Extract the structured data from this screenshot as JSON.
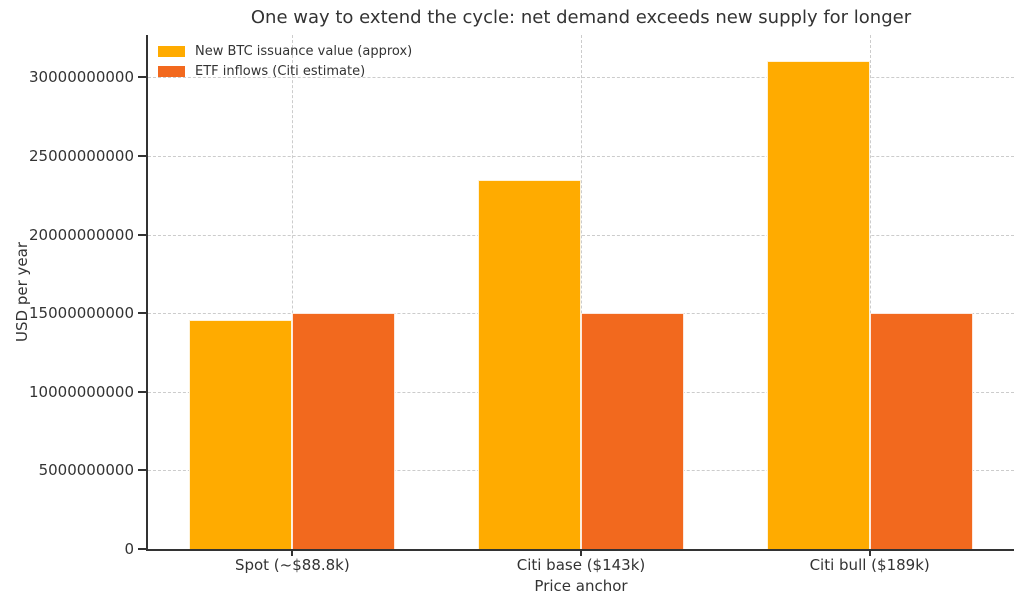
{
  "figure": {
    "background": "#FFFFFF",
    "text_color": "#333333",
    "grid_color": "#CCCCCC",
    "spine_color": "#333333"
  },
  "chart_data": {
    "type": "bar",
    "title": "One way to extend the cycle: net demand exceeds new supply for longer",
    "xlabel": "Price anchor",
    "ylabel": "USD per year",
    "categories": [
      "Spot (~$88.8k)",
      "Citi base ($143k)",
      "Citi bull ($189k)"
    ],
    "series": [
      {
        "name": "New BTC issuance value (approx)",
        "color": "#FFAB00",
        "values": [
          14590000000,
          23490000000,
          31040000000
        ]
      },
      {
        "name": "ETF inflows (Citi estimate)",
        "color": "#F2691E",
        "values": [
          15000000000,
          15000000000,
          15000000000
        ]
      }
    ],
    "ytick_values": [
      0,
      5000000000,
      10000000000,
      15000000000,
      20000000000,
      25000000000,
      30000000000
    ],
    "ytick_labels": [
      "0",
      "5000000000",
      "10000000000",
      "15000000000",
      "20000000000",
      "25000000000",
      "30000000000"
    ],
    "ylim": [
      0,
      32700000000
    ],
    "grid": true,
    "grid_style": "dashed",
    "legend_position": "upper left",
    "bar_width_fraction": 0.357
  }
}
